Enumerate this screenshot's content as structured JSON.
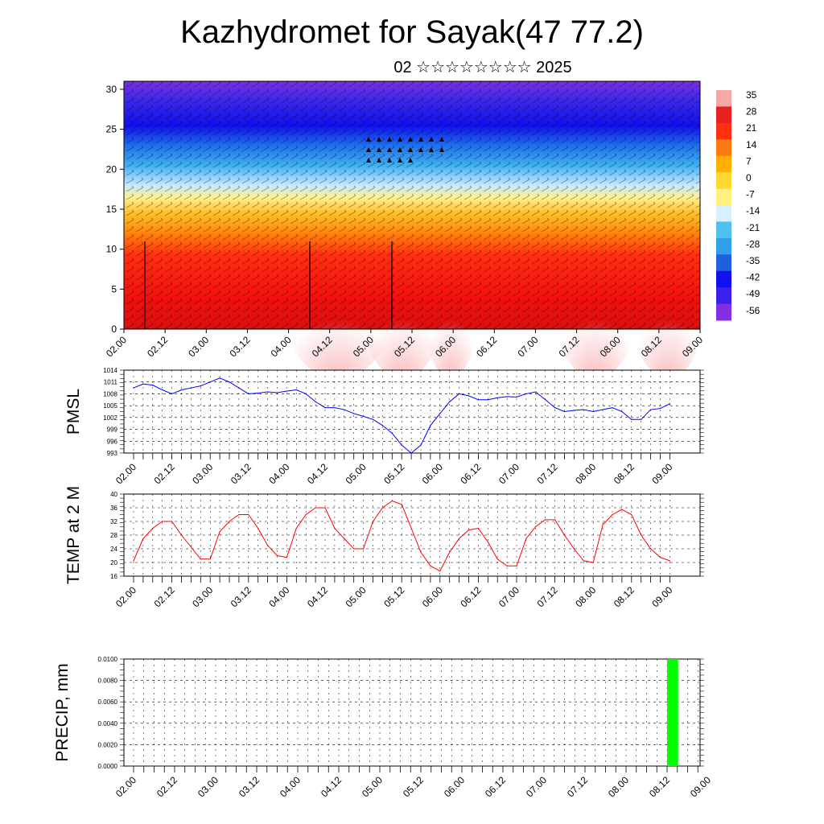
{
  "header": {
    "title": "Kazhydromet for Sayak(47 77.2)",
    "subtitle": "02 ☆☆☆☆☆☆☆☆ 2025"
  },
  "time_ticks": [
    "02.00",
    "02.12",
    "03.00",
    "03.12",
    "04.00",
    "04.12",
    "05.00",
    "05.12",
    "06.00",
    "06.12",
    "07.00",
    "07.12",
    "08.00",
    "08.12",
    "09.00"
  ],
  "chart_data": [
    {
      "type": "heatmap",
      "name": "cross-section",
      "xlabel": "",
      "ylabel": "",
      "yticks": [
        0,
        5,
        10,
        15,
        20,
        25,
        30
      ],
      "ylim": [
        0,
        31
      ],
      "colorbar_labels": [
        "35",
        "28",
        "21",
        "14",
        "7",
        "0",
        "-7",
        "-14",
        "-21",
        "-28",
        "-35",
        "-42",
        "-49",
        "-56"
      ],
      "colorbar_colors": [
        "#f4a8a8",
        "#e82020",
        "#ff3010",
        "#ff7a10",
        "#ffb000",
        "#ffd830",
        "#fff080",
        "#d8f0ff",
        "#50c0f0",
        "#30a0e8",
        "#2060e0",
        "#1010f0",
        "#3a20e8",
        "#8030e0"
      ]
    },
    {
      "type": "line",
      "name": "PMSL",
      "ylabel": "PMSL",
      "ylim": [
        993,
        1014
      ],
      "yticks": [
        993,
        996,
        999,
        1002,
        1005,
        1008,
        1011,
        1014
      ],
      "color": "#0000ff",
      "x": [
        0,
        1,
        2,
        3,
        4,
        5,
        6,
        7,
        8,
        9,
        10,
        11,
        12,
        13,
        14,
        15,
        16,
        17,
        18,
        19,
        20,
        21,
        22,
        23,
        24,
        25,
        26,
        27,
        28,
        29,
        30,
        31,
        32,
        33,
        34,
        35,
        36,
        37,
        38,
        39,
        40,
        41,
        42,
        43,
        44,
        45,
        46,
        47,
        48,
        49,
        50,
        51,
        52,
        53,
        54,
        55,
        56
      ],
      "values": [
        1009.5,
        1010.5,
        1010.2,
        1009,
        1008,
        1009,
        1009.5,
        1010,
        1011,
        1012,
        1011,
        1009.5,
        1008,
        1008.2,
        1008.5,
        1008.3,
        1008.7,
        1009,
        1008,
        1006,
        1004.5,
        1004.5,
        1004,
        1003,
        1002.3,
        1001.5,
        1000,
        998,
        995,
        993,
        995,
        1000,
        1003,
        1006,
        1008,
        1007.5,
        1006.5,
        1006.5,
        1007,
        1007.3,
        1007.2,
        1008,
        1008.5,
        1006.5,
        1004.5,
        1003.5,
        1003.8,
        1004,
        1003.5,
        1004,
        1004.5,
        1003.5,
        1001.5,
        1001.5,
        1004,
        1004.3,
        1005.5
      ]
    },
    {
      "type": "line",
      "name": "TEMP at 2 M",
      "ylabel": "TEMP at 2 M",
      "ylim": [
        16,
        40
      ],
      "yticks": [
        16,
        20,
        24,
        28,
        32,
        36,
        40
      ],
      "color": "#ff0000",
      "x": [
        0,
        1,
        2,
        3,
        4,
        5,
        6,
        7,
        8,
        9,
        10,
        11,
        12,
        13,
        14,
        15,
        16,
        17,
        18,
        19,
        20,
        21,
        22,
        23,
        24,
        25,
        26,
        27,
        28,
        29,
        30,
        31,
        32,
        33,
        34,
        35,
        36,
        37,
        38,
        39,
        40,
        41,
        42,
        43,
        44,
        45,
        46,
        47,
        48,
        49,
        50,
        51,
        52,
        53,
        54,
        55,
        56
      ],
      "values": [
        20.5,
        27,
        30,
        32,
        32,
        28,
        24.5,
        21,
        21,
        29,
        32,
        34,
        34,
        30,
        25,
        22,
        21.5,
        30,
        34,
        36,
        36,
        30,
        27,
        24,
        24,
        32,
        36,
        38,
        37,
        30,
        23,
        19,
        17.5,
        23,
        27,
        29.5,
        30,
        26,
        21,
        19,
        19,
        27,
        30.5,
        32.5,
        32.5,
        28,
        24,
        20.5,
        20,
        31,
        34,
        35.5,
        34,
        28,
        24,
        21.5,
        20.5
      ]
    },
    {
      "type": "bar",
      "name": "PRECIP, mm",
      "ylabel": "PRECIP, mm",
      "ylim": [
        0,
        0.01
      ],
      "yticks": [
        "0.0000",
        "0.0020",
        "0.0040",
        "0.0060",
        "0.0080",
        "0.0100"
      ],
      "color": "#00ff00",
      "x": [
        52
      ],
      "values": [
        0.01
      ]
    }
  ]
}
